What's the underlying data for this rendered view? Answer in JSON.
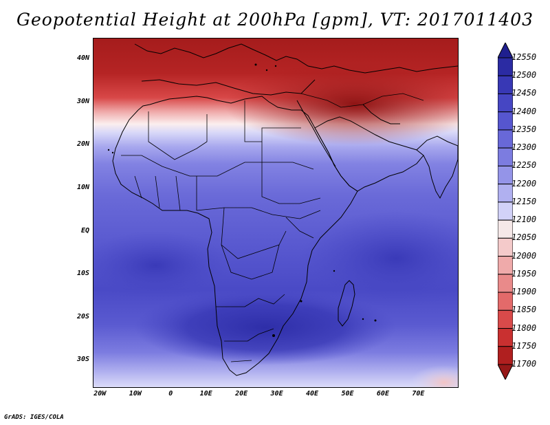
{
  "title": "Geopotential Height at 200hPa [gpm], VT: 2017011403",
  "credit": "GrADS: IGES/COLA",
  "map": {
    "region": "Africa",
    "lon_range": [
      -22,
      81
    ],
    "lat_range": [
      -36,
      45
    ],
    "lat_labels": [
      "40N",
      "30N",
      "20N",
      "10N",
      "EQ",
      "10S",
      "20S",
      "30S"
    ],
    "lat_values": [
      40,
      30,
      20,
      10,
      0,
      -10,
      -20,
      -30
    ],
    "lon_labels": [
      "20W",
      "10W",
      "0",
      "10E",
      "20E",
      "30E",
      "40E",
      "50E",
      "60E",
      "70E"
    ],
    "lon_values": [
      -20,
      -10,
      0,
      10,
      20,
      30,
      40,
      50,
      60,
      70
    ]
  },
  "colorbar": {
    "levels": [
      "12550",
      "12500",
      "12450",
      "12400",
      "12350",
      "12300",
      "12250",
      "12200",
      "12150",
      "12100",
      "12050",
      "12000",
      "11950",
      "11900",
      "11850",
      "11800",
      "11750",
      "11700"
    ],
    "colors": [
      "#1f1f8f",
      "#2b2ba3",
      "#3838b5",
      "#4646c3",
      "#5656cf",
      "#6868d8",
      "#7c7ce0",
      "#9494e8",
      "#b0b0f0",
      "#d2d2f8",
      "#f5e8e8",
      "#f4caca",
      "#efaaaa",
      "#e98a8a",
      "#e36a6a",
      "#d94a4a",
      "#c93030",
      "#b01f1f",
      "#961818"
    ]
  }
}
